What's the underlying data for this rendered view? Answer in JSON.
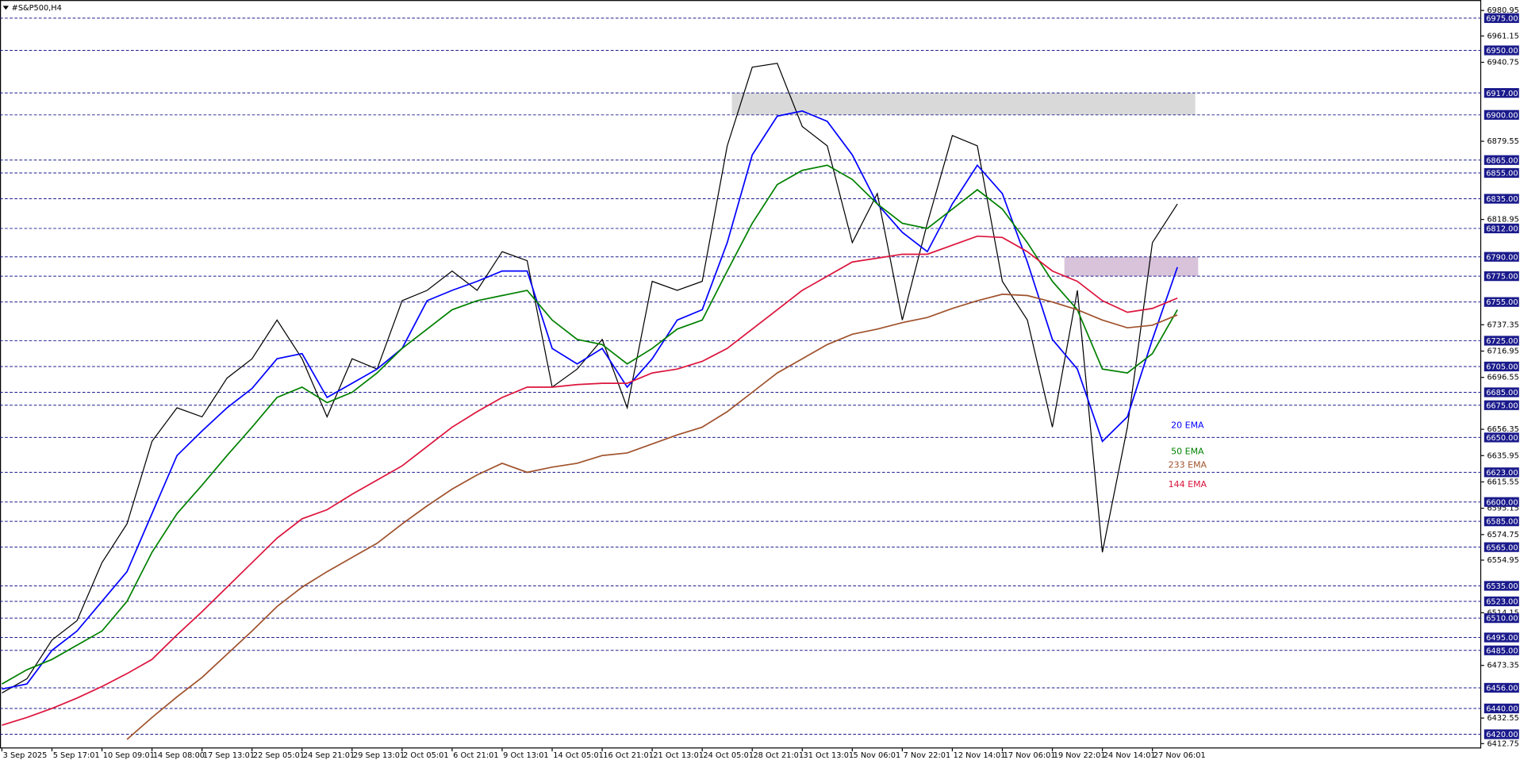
{
  "chart_data": {
    "type": "line",
    "title": "#S&P500,H4",
    "categories": [
      "3 Sep 2025",
      null,
      "5 Sep 17:01",
      null,
      "10 Sep 09:01",
      null,
      "14 Sep 08:00",
      null,
      "17 Sep 13:01",
      null,
      "22 Sep 05:01",
      null,
      "24 Sep 21:01",
      null,
      "29 Sep 13:01",
      null,
      "2 Oct 05:01",
      null,
      "6 Oct 21:01",
      null,
      "9 Oct 13:01",
      null,
      "14 Oct 05:01",
      null,
      "16 Oct 21:01",
      null,
      "21 Oct 13:01",
      null,
      "24 Oct 05:01",
      null,
      "28 Oct 21:01",
      null,
      "31 Oct 13:01",
      null,
      "5 Nov 06:01",
      null,
      "7 Nov 22:01",
      null,
      "12 Nov 14:01",
      null,
      "17 Nov 06:01",
      null,
      "19 Nov 22:01",
      null,
      "24 Nov 14:01",
      null,
      "27 Nov 06:01",
      null
    ],
    "series": [
      {
        "color": "#000000",
        "values": [
          6452,
          6463,
          6493,
          6508,
          6553,
          6583,
          6647,
          6673,
          6666,
          6696,
          6711,
          6741,
          6711,
          6666,
          6711,
          6703,
          6756,
          6764,
          6779,
          6764,
          6794,
          6787,
          6689,
          6703,
          6726,
          6673,
          6771,
          6764,
          6771,
          6876,
          6937,
          6940,
          6891,
          6876,
          6801,
          6839,
          6741,
          6816,
          6884,
          6876,
          6771,
          6741,
          6658,
          6764,
          6561,
          6658,
          6801,
          6831
        ]
      },
      {
        "name": "20 EMA",
        "color": "#0000ff",
        "values": [
          6455,
          6459,
          6485,
          6500,
          6523,
          6546,
          6591,
          6636,
          6655,
          6673,
          6688,
          6711,
          6715,
          6681,
          6692,
          6703,
          6719,
          6756,
          6764,
          6771,
          6779,
          6779,
          6719,
          6707,
          6719,
          6689,
          6711,
          6741,
          6749,
          6801,
          6869,
          6899,
          6903,
          6895,
          6869,
          6831,
          6809,
          6794,
          6831,
          6861,
          6839,
          6786,
          6726,
          6703,
          6647,
          6666,
          6726,
          6782
        ]
      },
      {
        "name": "50 EMA",
        "color": "#008000",
        "values": [
          6459,
          6470,
          6478,
          6489,
          6500,
          6523,
          6561,
          6591,
          6613,
          6636,
          6658,
          6681,
          6689,
          6677,
          6685,
          6700,
          6719,
          6734,
          6749,
          6756,
          6760,
          6764,
          6741,
          6726,
          6722,
          6707,
          6719,
          6734,
          6741,
          6779,
          6816,
          6846,
          6857,
          6861,
          6850,
          6831,
          6816,
          6812,
          6827,
          6842,
          6827,
          6801,
          6771,
          6749,
          6703,
          6700,
          6715,
          6749
        ]
      },
      {
        "name": "144 EMA",
        "color": "#dc143c",
        "values": [
          6427,
          6433,
          6440,
          6448,
          6457,
          6467,
          6478,
          6497,
          6515,
          6534,
          6553,
          6572,
          6587,
          6594,
          6606,
          6617,
          6628,
          6643,
          6658,
          6670,
          6681,
          6689,
          6689,
          6691,
          6692,
          6692,
          6700,
          6703,
          6709,
          6719,
          6734,
          6749,
          6764,
          6775,
          6786,
          6789,
          6792,
          6792,
          6799,
          6806,
          6805,
          6794,
          6779,
          6771,
          6756,
          6747,
          6750,
          6758
        ]
      },
      {
        "name": "233 EMA",
        "color": "#a0522d",
        "values": [
          null,
          null,
          null,
          null,
          null,
          6416,
          6433,
          6449,
          6464,
          6482,
          6500,
          6519,
          6534,
          6546,
          6557,
          6568,
          6583,
          6597,
          6610,
          6621,
          6630,
          6623,
          6627,
          6630,
          6636,
          6638,
          6645,
          6652,
          6658,
          6670,
          6685,
          6700,
          6711,
          6722,
          6730,
          6734,
          6739,
          6743,
          6750,
          6756,
          6761,
          6760,
          6755,
          6749,
          6741,
          6735,
          6737,
          6745
        ]
      }
    ],
    "ylim": [
      6409,
      6989
    ],
    "yticks": [
      6980.95,
      6961.15,
      6940.75,
      6879.55,
      6818.95,
      6737.35,
      6716.95,
      6696.55,
      6656.35,
      6635.95,
      6615.55,
      6595.15,
      6574.75,
      6554.95,
      6514.15,
      6473.35,
      6432.55,
      6412.75
    ],
    "levels": [
      {
        "value": 6975,
        "label": "6975.00"
      },
      {
        "value": 6950,
        "label": "6950.00"
      },
      {
        "value": 6917,
        "label": "6917.00"
      },
      {
        "value": 6900,
        "label": "6900.00"
      },
      {
        "value": 6865,
        "label": "6865.00"
      },
      {
        "value": 6855,
        "label": "6855.00"
      },
      {
        "value": 6835,
        "label": "6835.00"
      },
      {
        "value": 6812,
        "label": "6812.00"
      },
      {
        "value": 6790,
        "label": "6790.00"
      },
      {
        "value": 6775,
        "label": "6775.00"
      },
      {
        "value": 6755,
        "label": "6755.00"
      },
      {
        "value": 6725,
        "label": "6725.00"
      },
      {
        "value": 6705,
        "label": "6705.00"
      },
      {
        "value": 6685,
        "label": "6685.00"
      },
      {
        "value": 6675,
        "label": "6675.00"
      },
      {
        "value": 6650,
        "label": "6650.00"
      },
      {
        "value": 6623,
        "label": "6623.00"
      },
      {
        "value": 6600,
        "label": "6600.00"
      },
      {
        "value": 6585,
        "label": "6585.00"
      },
      {
        "value": 6565,
        "label": "6565.00"
      },
      {
        "value": 6535,
        "label": "6535.00"
      },
      {
        "value": 6523,
        "label": "6523.00"
      },
      {
        "value": 6510,
        "label": "6510.00"
      },
      {
        "value": 6495,
        "label": "6495.00"
      },
      {
        "value": 6485,
        "label": "6485.00"
      },
      {
        "value": 6456,
        "label": "6456.00"
      },
      {
        "value": 6440,
        "label": "6440.00"
      },
      {
        "value": 6420,
        "label": "6420.00"
      }
    ],
    "level_color": "#1a1a8c",
    "zones": [
      {
        "from": 6900,
        "to": 6917,
        "color": "#d9d9d9"
      },
      {
        "from": 6775,
        "to": 6790,
        "color": "#d8c3db"
      }
    ]
  }
}
